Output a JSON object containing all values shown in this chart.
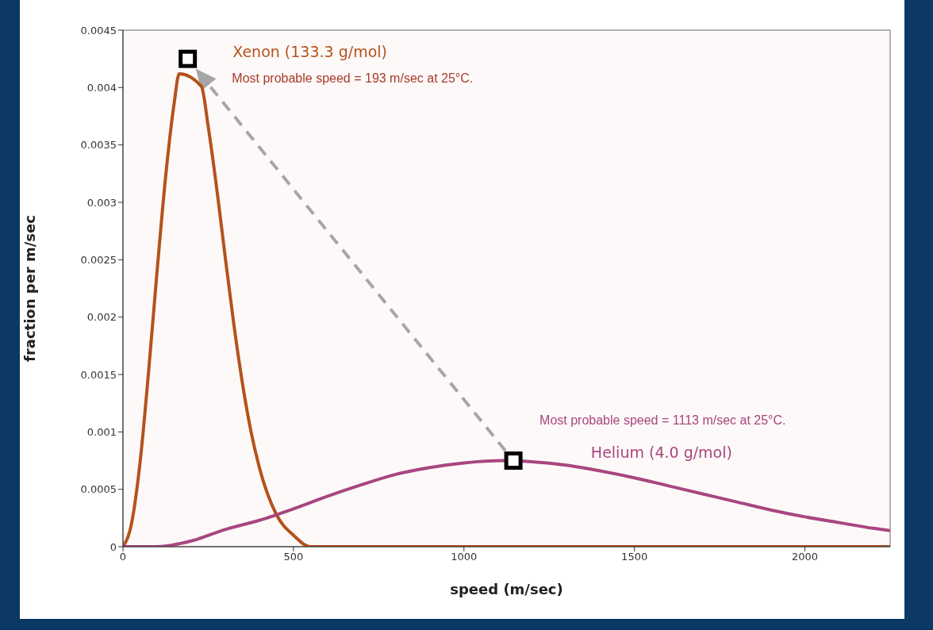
{
  "chart_data": {
    "type": "line",
    "xlabel": "speed (m/sec)",
    "ylabel": "fraction per m/sec",
    "xlim": [
      0,
      2250
    ],
    "xticks": [
      0,
      500,
      1000,
      1500,
      2000
    ],
    "ylim": [
      0,
      0.0045
    ],
    "yticks": [
      0,
      0.0005,
      0.001,
      0.0015,
      0.002,
      0.0025,
      0.003,
      0.0035,
      0.004,
      0.0045
    ],
    "series": [
      {
        "name": "Xenon (133.3 g/mol)",
        "color": "#b4521c",
        "x": [
          0,
          25,
          50,
          75,
          100,
          125,
          150,
          165,
          230,
          250,
          275,
          300,
          325,
          350,
          375,
          400,
          450,
          500,
          550,
          2250
        ],
        "values": [
          0,
          0.0002,
          0.00073,
          0.00152,
          0.0024,
          0.00322,
          0.00386,
          0.00412,
          0.00401,
          0.00366,
          0.00312,
          0.00252,
          0.00194,
          0.00143,
          0.00101,
          0.00069,
          0.00028,
          0.0001,
          0,
          0
        ]
      },
      {
        "name": "Helium (4.0 g/mol)",
        "color": "#a8467f",
        "x": [
          0,
          100,
          200,
          300,
          400,
          500,
          600,
          700,
          800,
          900,
          1000,
          1113,
          1200,
          1300,
          1400,
          1500,
          1600,
          1700,
          1800,
          1900,
          2000,
          2100,
          2200,
          2250
        ],
        "values": [
          0,
          0,
          5e-05,
          0.00015,
          0.00023,
          0.00033,
          0.00044,
          0.00054,
          0.00063,
          0.00069,
          0.00073,
          0.00075,
          0.00074,
          0.00071,
          0.00066,
          0.0006,
          0.00053,
          0.00046,
          0.00039,
          0.00032,
          0.00026,
          0.00021,
          0.00016,
          0.00014
        ]
      },
      {
        "type": "scatter",
        "marker": "square",
        "color": "#000000",
        "x": [
          190,
          1145
        ],
        "values": [
          0.00425,
          0.00075
        ]
      }
    ],
    "annotations": [
      "Most probable speed = 193 m/sec at 25°C.",
      "Most probable speed = 1113 m/sec at 25°C."
    ]
  }
}
